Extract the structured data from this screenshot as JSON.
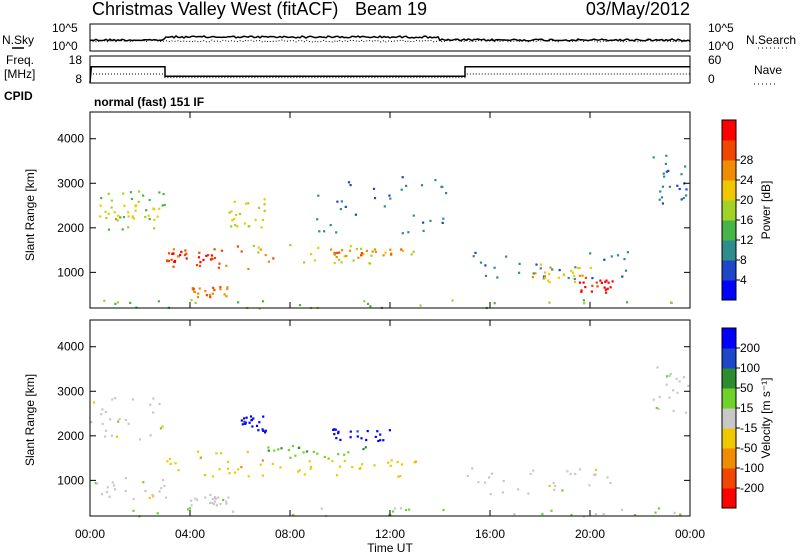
{
  "header": {
    "title": "Christmas Valley West (fitACF)",
    "beam": "Beam 19",
    "date": "03/May/2012"
  },
  "nsky_panel": {
    "left_label": "N.Sky",
    "right_label": "N.Search",
    "left_ticks": [
      "10^5",
      "10^0"
    ],
    "right_ticks": [
      "10^5",
      "10^0"
    ]
  },
  "freq_panel": {
    "left_label_1": "Freq.",
    "left_label_2": "[MHz]",
    "right_label": "Nave",
    "left_ticks": [
      "18",
      "8"
    ],
    "right_ticks": [
      "60",
      "0"
    ]
  },
  "cpid": {
    "label": "CPID",
    "text": "normal (fast) 151 IF"
  },
  "chart_data": [
    {
      "type": "line",
      "name": "frequency-and-nave",
      "x_unit": "hours UT",
      "series": [
        {
          "name": "Freq. [MHz]",
          "points": [
            [
              0,
              8
            ],
            [
              0.05,
              14
            ],
            [
              3.0,
              14
            ],
            [
              3.0,
              10.5
            ],
            [
              15.0,
              10.5
            ],
            [
              15.0,
              14
            ],
            [
              24,
              14
            ]
          ]
        },
        {
          "name": "Nave",
          "points": [
            [
              0,
              20
            ],
            [
              3.0,
              20
            ],
            [
              3.0,
              12
            ],
            [
              15.0,
              12
            ],
            [
              15.0,
              20
            ],
            [
              24,
              20
            ]
          ]
        }
      ]
    },
    {
      "type": "heatmap",
      "name": "power",
      "xlabel": "Time UT",
      "ylabel": "Slant Range [km]",
      "xlim": [
        0,
        24
      ],
      "ylim": [
        200,
        4600
      ],
      "x_ticks": [
        "00:00",
        "04:00",
        "08:00",
        "12:00",
        "16:00",
        "20:00",
        "00:00"
      ],
      "y_ticks": [
        1000,
        2000,
        3000,
        4000
      ],
      "colorbar": {
        "label": "Power [dB]",
        "range": [
          0,
          32
        ],
        "ticks": [
          "4",
          "8",
          "12",
          "16",
          "20",
          "24",
          "28"
        ],
        "colors": [
          "#0000ff",
          "#1e46c8",
          "#2d8c8c",
          "#46b446",
          "#a0d228",
          "#f0c800",
          "#f08c00",
          "#f04600",
          "#ff0000"
        ]
      },
      "regions": [
        {
          "t0": 0.0,
          "t1": 3.0,
          "r0": 1900,
          "r1": 2900,
          "value": 14
        },
        {
          "t0": 0.3,
          "t1": 2.8,
          "r0": 2200,
          "r1": 2550,
          "value": 20
        },
        {
          "t0": 3.0,
          "t1": 7.5,
          "r0": 1100,
          "r1": 1700,
          "value": 26
        },
        {
          "t0": 3.0,
          "t1": 5.0,
          "r0": 1250,
          "r1": 1500,
          "value": 29
        },
        {
          "t0": 4.0,
          "t1": 5.5,
          "r0": 450,
          "r1": 700,
          "value": 24
        },
        {
          "t0": 6.5,
          "t1": 13.5,
          "r0": 1200,
          "r1": 1650,
          "value": 18
        },
        {
          "t0": 9.5,
          "t1": 12.5,
          "r0": 1350,
          "r1": 1550,
          "value": 24
        },
        {
          "t0": 5.5,
          "t1": 7.0,
          "r0": 2000,
          "r1": 2700,
          "value": 18
        },
        {
          "t0": 9.0,
          "t1": 14.5,
          "r0": 1900,
          "r1": 3200,
          "value": 8
        },
        {
          "t0": 15.0,
          "t1": 21.5,
          "r0": 800,
          "r1": 1500,
          "value": 8
        },
        {
          "t0": 19.5,
          "t1": 21.0,
          "r0": 550,
          "r1": 900,
          "value": 29
        },
        {
          "t0": 17.5,
          "t1": 20.0,
          "r0": 800,
          "r1": 1200,
          "value": 20
        },
        {
          "t0": 22.5,
          "t1": 24.0,
          "r0": 2500,
          "r1": 3700,
          "value": 8
        },
        {
          "t0": 0.0,
          "t1": 24.0,
          "r0": 200,
          "r1": 400,
          "value": 14
        }
      ]
    },
    {
      "type": "heatmap",
      "name": "velocity",
      "xlabel": "Time UT",
      "ylabel": "Slant Range [km]",
      "xlim": [
        0,
        24
      ],
      "ylim": [
        200,
        4600
      ],
      "x_ticks": [
        "00:00",
        "04:00",
        "08:00",
        "12:00",
        "16:00",
        "20:00",
        "00:00"
      ],
      "y_ticks": [
        1000,
        2000,
        3000,
        4000
      ],
      "colorbar": {
        "label": "Velocity [m s⁻¹]",
        "range": [
          -250,
          250
        ],
        "ticks": [
          "-200",
          "-100",
          "-50",
          "-15",
          "15",
          "50",
          "100",
          "200"
        ],
        "colors": [
          "#ff0000",
          "#f04600",
          "#f08c00",
          "#f0c800",
          "#c8c8c8",
          "#6ed228",
          "#2d8c2d",
          "#1e46c8",
          "#0000ff"
        ]
      },
      "regions": [
        {
          "t0": 0.0,
          "t1": 3.0,
          "r0": 1900,
          "r1": 2900,
          "value": 0
        },
        {
          "t0": 3.0,
          "t1": 7.5,
          "r0": 1100,
          "r1": 1700,
          "value": -60
        },
        {
          "t0": 7.0,
          "t1": 13.5,
          "r0": 1100,
          "r1": 1500,
          "value": -60
        },
        {
          "t0": 7.0,
          "t1": 11.0,
          "r0": 1500,
          "r1": 1800,
          "value": 80
        },
        {
          "t0": 6.0,
          "t1": 7.0,
          "r0": 2100,
          "r1": 2500,
          "value": 220
        },
        {
          "t0": 9.5,
          "t1": 12.0,
          "r0": 1900,
          "r1": 2200,
          "value": 220
        },
        {
          "t0": 4.0,
          "t1": 5.5,
          "r0": 450,
          "r1": 700,
          "value": 0
        },
        {
          "t0": 0.0,
          "t1": 3.0,
          "r0": 600,
          "r1": 1100,
          "value": 0
        },
        {
          "t0": 15.0,
          "t1": 21.5,
          "r0": 700,
          "r1": 1300,
          "value": 0
        },
        {
          "t0": 22.5,
          "t1": 24.0,
          "r0": 2500,
          "r1": 3600,
          "value": 0
        },
        {
          "t0": 0.0,
          "t1": 24.0,
          "r0": 200,
          "r1": 400,
          "value": 30
        }
      ]
    }
  ]
}
